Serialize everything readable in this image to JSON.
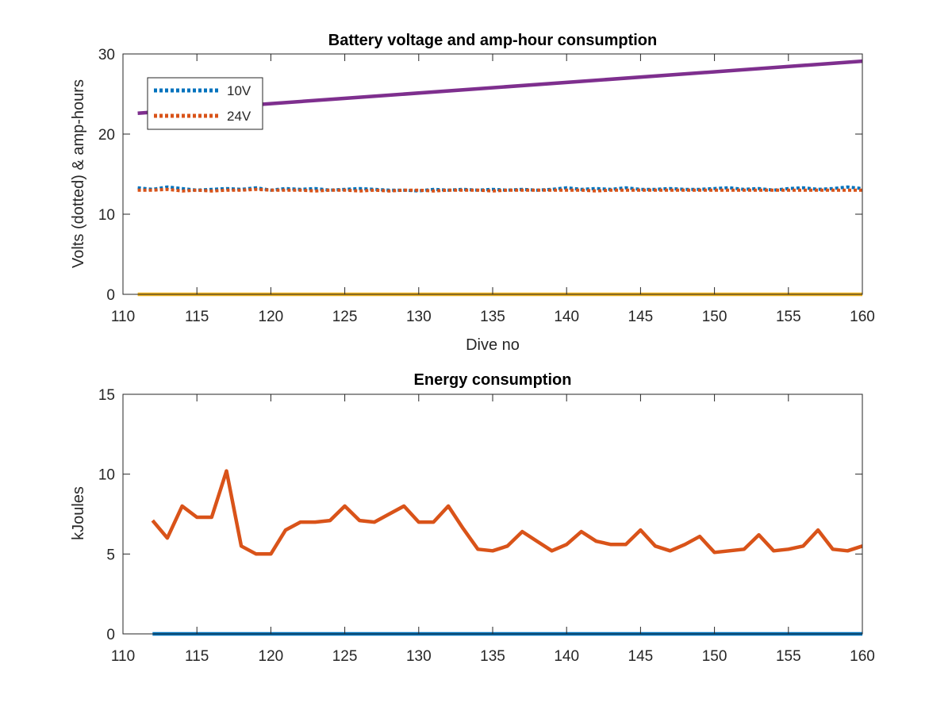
{
  "colors": {
    "blue": "#0072BD",
    "orange": "#D95319",
    "yellow": "#EDB120",
    "purple": "#7E2F8E",
    "axis": "#262626"
  },
  "chart_data": [
    {
      "type": "line",
      "title": "Battery voltage and amp-hour consumption",
      "xlabel": "Dive no",
      "ylabel": "Volts (dotted) & amp-hours",
      "xlim": [
        110,
        160
      ],
      "ylim": [
        0,
        30
      ],
      "xticks": [
        110,
        115,
        120,
        125,
        130,
        135,
        140,
        145,
        150,
        155,
        160
      ],
      "yticks": [
        0,
        10,
        20,
        30
      ],
      "grid": false,
      "legend": {
        "placement": "top-left",
        "entries": [
          "10V",
          "24V"
        ]
      },
      "series": [
        {
          "name": "10V",
          "style": "dotted",
          "color": "#0072BD",
          "x": [
            111,
            112,
            113,
            114,
            115,
            116,
            117,
            118,
            119,
            120,
            121,
            122,
            123,
            124,
            125,
            126,
            127,
            128,
            129,
            130,
            131,
            132,
            133,
            134,
            135,
            136,
            137,
            138,
            139,
            140,
            141,
            142,
            143,
            144,
            145,
            146,
            147,
            148,
            149,
            150,
            151,
            152,
            153,
            154,
            155,
            156,
            157,
            158,
            159,
            160
          ],
          "y": [
            13.3,
            13.1,
            13.4,
            13.2,
            13.0,
            13.1,
            13.2,
            13.1,
            13.3,
            13.0,
            13.2,
            13.1,
            13.2,
            13.0,
            13.1,
            13.2,
            13.1,
            13.0,
            13.0,
            12.9,
            13.1,
            13.0,
            13.1,
            13.0,
            13.1,
            13.0,
            13.1,
            13.0,
            13.1,
            13.3,
            13.1,
            13.2,
            13.1,
            13.3,
            13.1,
            13.1,
            13.2,
            13.1,
            13.1,
            13.2,
            13.3,
            13.1,
            13.2,
            13.0,
            13.2,
            13.3,
            13.1,
            13.2,
            13.4,
            13.2
          ]
        },
        {
          "name": "24V",
          "style": "dotted",
          "color": "#D95319",
          "x": [
            111,
            112,
            113,
            114,
            115,
            116,
            117,
            118,
            119,
            120,
            121,
            122,
            123,
            124,
            125,
            126,
            127,
            128,
            129,
            130,
            131,
            132,
            133,
            134,
            135,
            136,
            137,
            138,
            139,
            140,
            141,
            142,
            143,
            144,
            145,
            146,
            147,
            148,
            149,
            150,
            151,
            152,
            153,
            154,
            155,
            156,
            157,
            158,
            159,
            160
          ],
          "y": [
            13.0,
            13.0,
            13.1,
            12.9,
            13.0,
            12.9,
            13.0,
            13.0,
            13.1,
            13.0,
            13.0,
            13.0,
            12.9,
            13.0,
            13.0,
            12.9,
            13.0,
            12.9,
            13.0,
            13.0,
            12.9,
            13.0,
            13.0,
            13.0,
            12.9,
            13.0,
            13.0,
            13.0,
            13.0,
            13.0,
            13.0,
            12.9,
            13.0,
            13.0,
            13.0,
            13.0,
            13.0,
            13.0,
            13.0,
            13.0,
            13.0,
            13.0,
            13.0,
            13.0,
            13.0,
            13.0,
            13.0,
            13.0,
            13.0,
            13.0
          ]
        },
        {
          "style": "solid",
          "color": "#EDB120",
          "x": [
            111,
            160
          ],
          "y": [
            0,
            0
          ]
        },
        {
          "style": "solid",
          "color": "#7E2F8E",
          "x": [
            111,
            160
          ],
          "y": [
            22.6,
            29.1
          ]
        }
      ]
    },
    {
      "type": "line",
      "title": "Energy consumption",
      "xlabel": "",
      "ylabel": "kJoules",
      "xlim": [
        110,
        160
      ],
      "ylim": [
        0,
        15
      ],
      "xticks": [
        110,
        115,
        120,
        125,
        130,
        135,
        140,
        145,
        150,
        155,
        160
      ],
      "yticks": [
        0,
        5,
        10,
        15
      ],
      "grid": false,
      "series": [
        {
          "style": "solid",
          "color": "#0072BD",
          "x": [
            112,
            160
          ],
          "y": [
            0,
            0
          ]
        },
        {
          "style": "solid",
          "color": "#D95319",
          "x": [
            112,
            113,
            114,
            115,
            116,
            117,
            118,
            119,
            120,
            121,
            122,
            123,
            124,
            125,
            126,
            127,
            128,
            129,
            130,
            131,
            132,
            133,
            134,
            135,
            136,
            137,
            138,
            139,
            140,
            141,
            142,
            143,
            144,
            145,
            146,
            147,
            148,
            149,
            150,
            151,
            152,
            153,
            154,
            155,
            156,
            157,
            158,
            159,
            160
          ],
          "y": [
            7.1,
            6.0,
            8.0,
            7.3,
            7.3,
            10.2,
            5.5,
            5.0,
            5.0,
            6.5,
            7.0,
            7.0,
            7.1,
            8.0,
            7.1,
            7.0,
            7.5,
            8.0,
            7.0,
            7.0,
            8.0,
            6.6,
            5.3,
            5.2,
            5.5,
            6.4,
            5.8,
            5.2,
            5.6,
            6.4,
            5.8,
            5.6,
            5.6,
            6.5,
            5.5,
            5.2,
            5.6,
            6.1,
            5.1,
            5.2,
            5.3,
            6.2,
            5.2,
            5.3,
            5.5,
            6.5,
            5.3,
            5.2,
            5.5
          ]
        }
      ]
    }
  ]
}
